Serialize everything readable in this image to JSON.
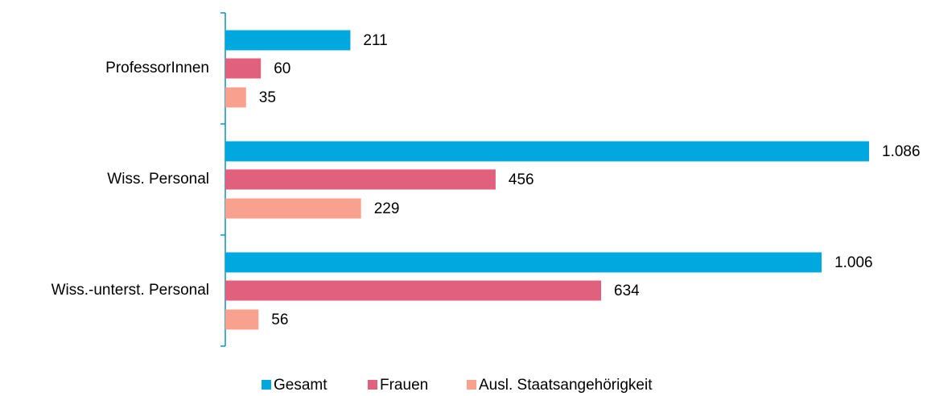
{
  "chart_data": {
    "type": "bar",
    "orientation": "horizontal",
    "categories": [
      "ProfessorInnen",
      "Wiss. Personal",
      "Wiss.-unterst. Personal"
    ],
    "series": [
      {
        "name": "Gesamt",
        "color": "#00a8e0",
        "values": [
          211,
          1086,
          1006
        ],
        "value_labels": [
          "211",
          "1.086",
          "1.006"
        ]
      },
      {
        "name": "Frauen",
        "color": "#e0607e",
        "values": [
          60,
          456,
          634
        ],
        "value_labels": [
          "60",
          "456",
          "634"
        ]
      },
      {
        "name": "Ausl. Staatsangehörigkeit",
        "color": "#f9a18f",
        "values": [
          35,
          229,
          56
        ],
        "value_labels": [
          "35",
          "229",
          "56"
        ]
      }
    ]
  }
}
